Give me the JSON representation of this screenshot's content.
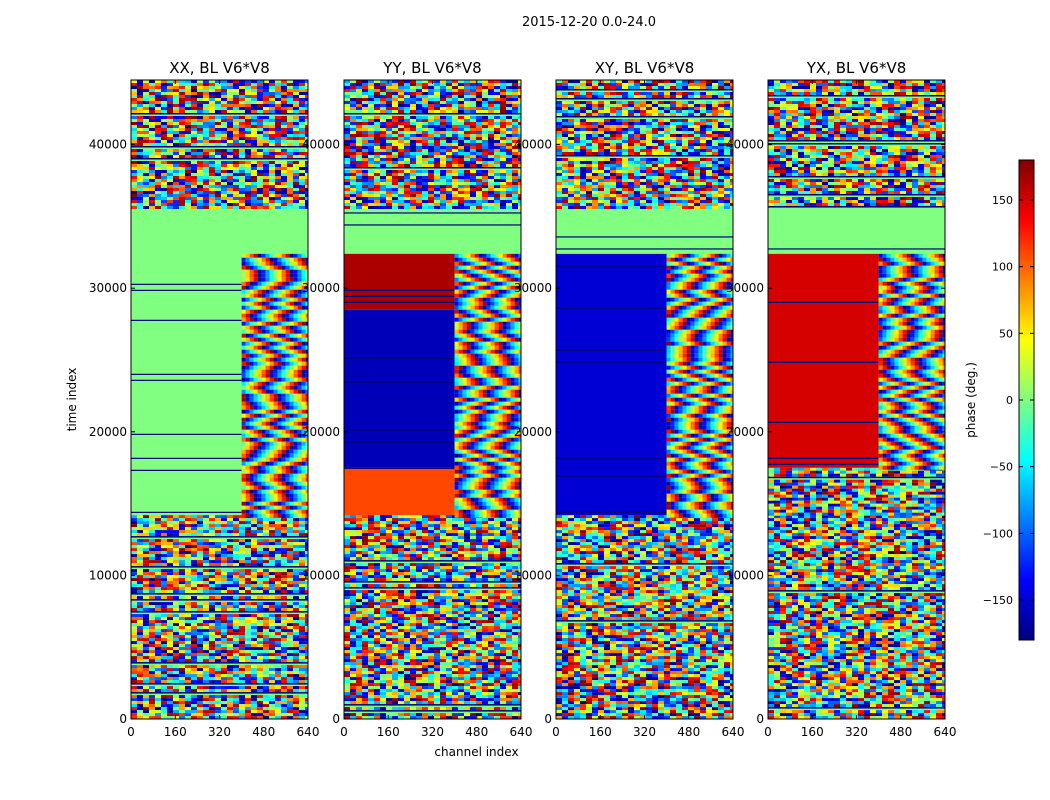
{
  "figure": {
    "suptitle": "2015-12-20 0.0-24.0"
  },
  "colorbar": {
    "label": "phase (deg.)",
    "range": [
      -180,
      180
    ],
    "ticks": [
      -150,
      -100,
      -50,
      0,
      50,
      100,
      150
    ],
    "tick_labels": [
      "−150",
      "−100",
      "−50",
      "0",
      "50",
      "100",
      "150"
    ],
    "colormap": "jet",
    "colors": [
      "#00007f",
      "#0000ff",
      "#007fff",
      "#00ffff",
      "#7fff7f",
      "#ffff00",
      "#ff7f00",
      "#ff0000",
      "#7f0000"
    ]
  },
  "chart_data": [
    {
      "type": "heatmap",
      "title": "XX, BL V6*V8",
      "xlabel": "",
      "ylabel": "time index",
      "xlim": [
        0,
        640
      ],
      "ylim": [
        0,
        44500
      ],
      "xticks": [
        0,
        160,
        320,
        480,
        640
      ],
      "yticks": [
        0,
        10000,
        20000,
        30000,
        40000
      ],
      "value": "phase (deg.)",
      "regions": [
        {
          "t0": 0,
          "t1": 14200,
          "c0": 0,
          "c1": 640,
          "pattern": "noise"
        },
        {
          "t0": 14200,
          "t1": 32400,
          "c0": 0,
          "c1": 400,
          "phase": 0
        },
        {
          "t0": 14200,
          "t1": 32400,
          "c0": 400,
          "c1": 640,
          "pattern": "fringes"
        },
        {
          "t0": 32400,
          "t1": 35700,
          "c0": 0,
          "c1": 640,
          "phase": 0
        },
        {
          "t0": 35700,
          "t1": 44500,
          "c0": 0,
          "c1": 640,
          "pattern": "noise"
        }
      ]
    },
    {
      "type": "heatmap",
      "title": "YY, BL V6*V8",
      "xlabel": "channel index",
      "ylabel": "",
      "xlim": [
        0,
        640
      ],
      "ylim": [
        0,
        44500
      ],
      "xticks": [
        0,
        160,
        320,
        480,
        640
      ],
      "yticks": [
        0,
        10000,
        20000,
        30000,
        40000
      ],
      "value": "phase (deg.)",
      "regions": [
        {
          "t0": 0,
          "t1": 14200,
          "c0": 0,
          "c1": 640,
          "pattern": "noise"
        },
        {
          "t0": 14200,
          "t1": 17500,
          "c0": 0,
          "c1": 400,
          "phase": 110
        },
        {
          "t0": 17500,
          "t1": 28500,
          "c0": 0,
          "c1": 400,
          "phase": -160
        },
        {
          "t0": 28500,
          "t1": 32400,
          "c0": 0,
          "c1": 400,
          "phase": 165
        },
        {
          "t0": 14200,
          "t1": 32400,
          "c0": 400,
          "c1": 640,
          "pattern": "fringes"
        },
        {
          "t0": 32400,
          "t1": 35700,
          "c0": 0,
          "c1": 640,
          "phase": 0
        },
        {
          "t0": 35700,
          "t1": 44500,
          "c0": 0,
          "c1": 640,
          "pattern": "noise"
        }
      ]
    },
    {
      "type": "heatmap",
      "title": "XY, BL V6*V8",
      "xlabel": "",
      "ylabel": "",
      "xlim": [
        0,
        640
      ],
      "ylim": [
        0,
        44500
      ],
      "xticks": [
        0,
        160,
        320,
        480,
        640
      ],
      "yticks": [
        0,
        10000,
        20000,
        30000,
        40000
      ],
      "value": "phase (deg.)",
      "regions": [
        {
          "t0": 0,
          "t1": 14200,
          "c0": 0,
          "c1": 640,
          "pattern": "noise"
        },
        {
          "t0": 14200,
          "t1": 32400,
          "c0": 0,
          "c1": 400,
          "phase": -150
        },
        {
          "t0": 14200,
          "t1": 32400,
          "c0": 400,
          "c1": 640,
          "pattern": "fringes"
        },
        {
          "t0": 32400,
          "t1": 35700,
          "c0": 0,
          "c1": 640,
          "phase": 0
        },
        {
          "t0": 35700,
          "t1": 44500,
          "c0": 0,
          "c1": 640,
          "pattern": "noise"
        }
      ]
    },
    {
      "type": "heatmap",
      "title": "YX, BL V6*V8",
      "xlabel": "",
      "ylabel": "",
      "xlim": [
        0,
        640
      ],
      "ylim": [
        0,
        44500
      ],
      "xticks": [
        0,
        160,
        320,
        480,
        640
      ],
      "yticks": [
        0,
        10000,
        20000,
        30000,
        40000
      ],
      "value": "phase (deg.)",
      "regions": [
        {
          "t0": 0,
          "t1": 14200,
          "c0": 0,
          "c1": 640,
          "pattern": "noise"
        },
        {
          "t0": 14200,
          "t1": 17500,
          "c0": 0,
          "c1": 640,
          "pattern": "noise"
        },
        {
          "t0": 17500,
          "t1": 32400,
          "c0": 0,
          "c1": 400,
          "phase": 150
        },
        {
          "t0": 17500,
          "t1": 32400,
          "c0": 400,
          "c1": 640,
          "pattern": "fringes"
        },
        {
          "t0": 32400,
          "t1": 35700,
          "c0": 0,
          "c1": 640,
          "phase": 0
        },
        {
          "t0": 35700,
          "t1": 44500,
          "c0": 0,
          "c1": 640,
          "pattern": "noise"
        }
      ]
    }
  ]
}
